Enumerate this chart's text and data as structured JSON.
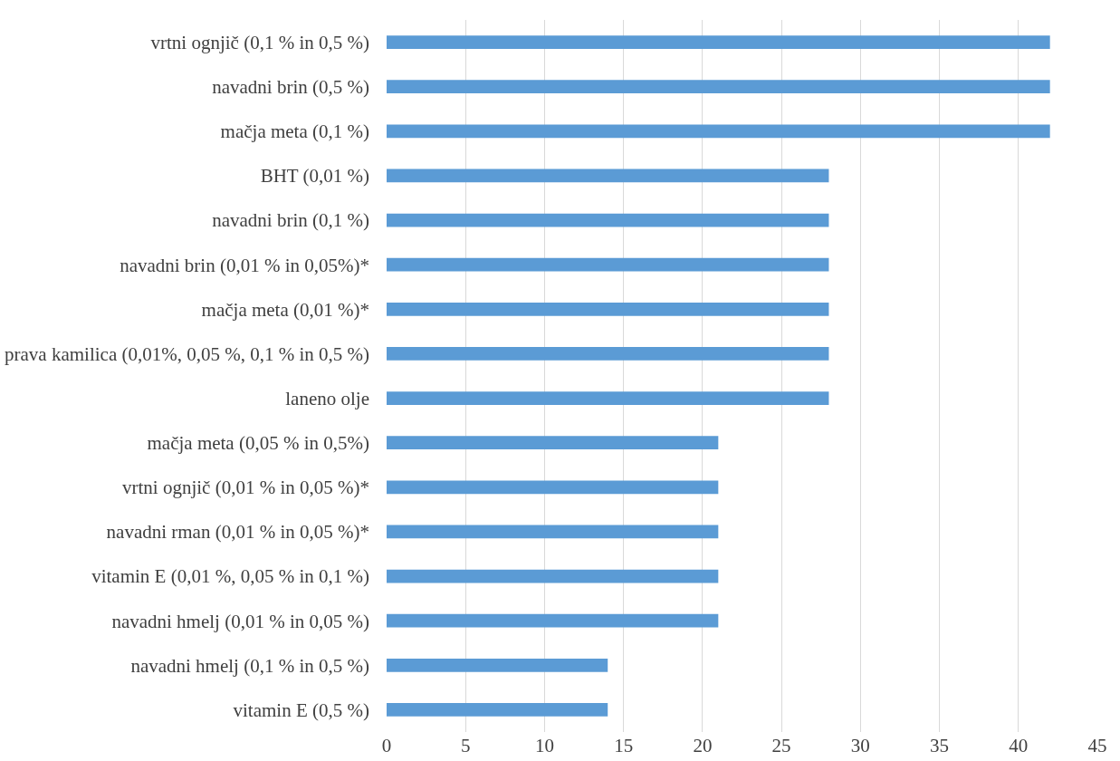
{
  "chart_data": {
    "type": "bar",
    "orientation": "horizontal",
    "categories": [
      "vrtni ognjič (0,1 % in 0,5 %)",
      "navadni brin (0,5 %)",
      "mačja meta (0,1 %)",
      "BHT (0,01 %)",
      "navadni brin (0,1 %)",
      "navadni brin (0,01 % in 0,05%)*",
      "mačja meta (0,01 %)*",
      "prava kamilica (0,01%, 0,05 %, 0,1 % in 0,5 %)",
      "laneno olje",
      "mačja meta (0,05 % in 0,5%)",
      "vrtni ognjič (0,01 % in 0,05 %)*",
      "navadni rman (0,01 % in 0,05 %)*",
      "vitamin E (0,01 %, 0,05 % in 0,1 %)",
      "navadni hmelj (0,01 % in 0,05 %)",
      "navadni hmelj (0,1 % in 0,5 %)",
      "vitamin E (0,5 %)"
    ],
    "values": [
      42,
      42,
      42,
      28,
      28,
      28,
      28,
      28,
      28,
      21,
      21,
      21,
      21,
      21,
      14,
      14
    ],
    "color": "#5b9bd5",
    "xlim": [
      0,
      45
    ],
    "xticks": [
      0,
      5,
      10,
      15,
      20,
      25,
      30,
      35,
      40,
      45
    ],
    "grid": "x"
  }
}
